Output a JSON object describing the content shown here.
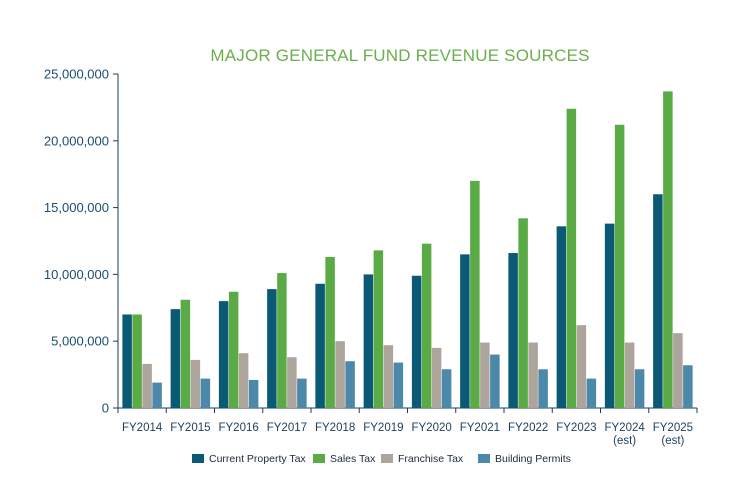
{
  "chart_data": {
    "type": "bar",
    "title": "MAJOR GENERAL FUND REVENUE SOURCES",
    "xlabel": "",
    "ylabel": "",
    "ylim": [
      0,
      25000000
    ],
    "yticks": [
      {
        "value": 0,
        "label": "0"
      },
      {
        "value": 5000000,
        "label": "5,000,000"
      },
      {
        "value": 10000000,
        "label": "10,000,000"
      },
      {
        "value": 15000000,
        "label": "15,000,000"
      },
      {
        "value": 20000000,
        "label": "20,000,000"
      },
      {
        "value": 25000000,
        "label": "25,000,000"
      }
    ],
    "categories": [
      [
        "FY2014"
      ],
      [
        "FY2015"
      ],
      [
        "FY2016"
      ],
      [
        "FY2017"
      ],
      [
        "FY2018"
      ],
      [
        "FY2019"
      ],
      [
        "FY2020"
      ],
      [
        "FY2021"
      ],
      [
        "FY2022"
      ],
      [
        "FY2023"
      ],
      [
        "FY2024",
        "(est)"
      ],
      [
        "FY2025",
        "(est)"
      ]
    ],
    "grid": false,
    "legend_position": "bottom",
    "series": [
      {
        "name": "Current Property Tax",
        "color": "#0b5a75",
        "values": [
          7000000,
          7400000,
          8000000,
          8900000,
          9300000,
          10000000,
          9900000,
          11500000,
          11600000,
          13600000,
          13800000,
          16000000
        ]
      },
      {
        "name": "Sales Tax",
        "color": "#5aab46",
        "values": [
          7000000,
          8100000,
          8700000,
          10100000,
          11300000,
          11800000,
          12300000,
          17000000,
          14200000,
          22400000,
          21200000,
          23700000
        ]
      },
      {
        "name": "Franchise Tax",
        "color": "#ada49b",
        "values": [
          3300000,
          3600000,
          4100000,
          3800000,
          5000000,
          4700000,
          4500000,
          4900000,
          4900000,
          6200000,
          4900000,
          5600000
        ]
      },
      {
        "name": "Building Permits",
        "color": "#4b88aa",
        "values": [
          1900000,
          2200000,
          2100000,
          2200000,
          3500000,
          3400000,
          2900000,
          4000000,
          2900000,
          2200000,
          2900000,
          3200000
        ]
      }
    ]
  }
}
